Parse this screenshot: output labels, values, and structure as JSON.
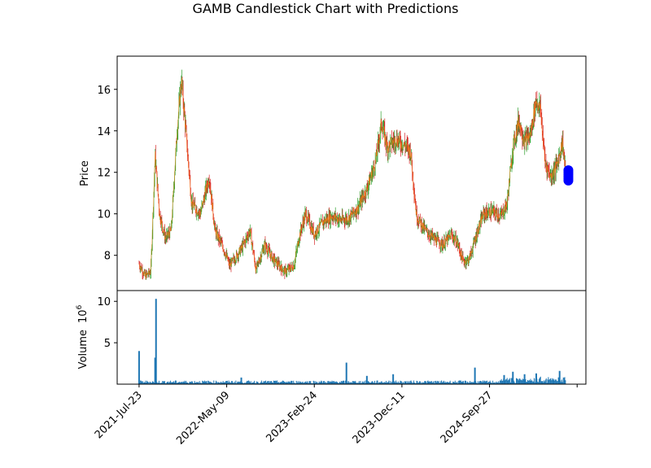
{
  "chart_data": {
    "type": "candlestick",
    "title": "GAMB Candlestick Chart with Predictions",
    "price_panel": {
      "ylabel": "Price",
      "ylim": [
        6.3,
        17.6
      ],
      "yticks": [
        8,
        10,
        12,
        14,
        16
      ],
      "up_color": "#2ca02c",
      "down_color": "#d62728",
      "close_line_color": "#ff7f0e",
      "series_approx_close": [
        {
          "x": 0.0,
          "y": 7.6
        },
        {
          "x": 2.0,
          "y": 7.0
        },
        {
          "x": 4.0,
          "y": 7.2
        },
        {
          "x": 5.5,
          "y": 12.8
        },
        {
          "x": 7.0,
          "y": 10.0
        },
        {
          "x": 9.0,
          "y": 8.8
        },
        {
          "x": 11.0,
          "y": 9.2
        },
        {
          "x": 13.0,
          "y": 14.0
        },
        {
          "x": 14.5,
          "y": 16.5
        },
        {
          "x": 16.0,
          "y": 14.0
        },
        {
          "x": 18.0,
          "y": 10.5
        },
        {
          "x": 21.0,
          "y": 10.0
        },
        {
          "x": 24.0,
          "y": 11.8
        },
        {
          "x": 26.0,
          "y": 9.2
        },
        {
          "x": 29.0,
          "y": 8.3
        },
        {
          "x": 31.0,
          "y": 7.5
        },
        {
          "x": 35.0,
          "y": 8.3
        },
        {
          "x": 38.0,
          "y": 9.2
        },
        {
          "x": 40.0,
          "y": 7.3
        },
        {
          "x": 43.0,
          "y": 8.5
        },
        {
          "x": 46.0,
          "y": 7.8
        },
        {
          "x": 50.0,
          "y": 7.2
        },
        {
          "x": 53.0,
          "y": 7.5
        },
        {
          "x": 55.0,
          "y": 9.0
        },
        {
          "x": 57.0,
          "y": 10.0
        },
        {
          "x": 60.0,
          "y": 9.0
        },
        {
          "x": 63.0,
          "y": 9.6
        },
        {
          "x": 66.0,
          "y": 9.9
        },
        {
          "x": 69.0,
          "y": 9.7
        },
        {
          "x": 72.0,
          "y": 9.8
        },
        {
          "x": 75.0,
          "y": 10.3
        },
        {
          "x": 78.0,
          "y": 11.2
        },
        {
          "x": 81.0,
          "y": 12.5
        },
        {
          "x": 83.0,
          "y": 14.4
        },
        {
          "x": 85.0,
          "y": 13.2
        },
        {
          "x": 88.0,
          "y": 13.6
        },
        {
          "x": 91.0,
          "y": 13.3
        },
        {
          "x": 93.0,
          "y": 13.0
        },
        {
          "x": 95.0,
          "y": 9.9
        },
        {
          "x": 98.0,
          "y": 9.2
        },
        {
          "x": 101.0,
          "y": 8.8
        },
        {
          "x": 104.0,
          "y": 8.5
        },
        {
          "x": 107.0,
          "y": 9.0
        },
        {
          "x": 109.0,
          "y": 8.6
        },
        {
          "x": 111.0,
          "y": 7.7
        },
        {
          "x": 113.0,
          "y": 7.8
        },
        {
          "x": 116.0,
          "y": 9.2
        },
        {
          "x": 118.0,
          "y": 10.0
        },
        {
          "x": 121.0,
          "y": 10.1
        },
        {
          "x": 124.0,
          "y": 9.9
        },
        {
          "x": 126.0,
          "y": 10.5
        },
        {
          "x": 128.0,
          "y": 13.2
        },
        {
          "x": 130.0,
          "y": 14.5
        },
        {
          "x": 132.0,
          "y": 13.5
        },
        {
          "x": 134.0,
          "y": 13.8
        },
        {
          "x": 136.0,
          "y": 15.5
        },
        {
          "x": 137.5,
          "y": 15.0
        },
        {
          "x": 139.0,
          "y": 12.5
        },
        {
          "x": 141.0,
          "y": 11.8
        },
        {
          "x": 143.0,
          "y": 12.3
        },
        {
          "x": 145.0,
          "y": 13.5
        },
        {
          "x": 146.0,
          "y": 12.0
        }
      ],
      "predictions_color": "#0000ff",
      "predictions": [
        {
          "x": 147.0,
          "y": 12.1
        },
        {
          "x": 147.0,
          "y": 11.9
        },
        {
          "x": 147.0,
          "y": 11.7
        },
        {
          "x": 147.0,
          "y": 11.6
        },
        {
          "x": 147.0,
          "y": 12.0
        },
        {
          "x": 147.0,
          "y": 11.8
        }
      ]
    },
    "volume_panel": {
      "ylabel": "Volume",
      "scale_label": "10",
      "scale_exponent": "6",
      "ylim": [
        0,
        11.3
      ],
      "yticks": [
        5,
        10
      ],
      "bar_color": "#1f77b4",
      "spikes": [
        {
          "x": 0.0,
          "y": 4.0
        },
        {
          "x": 5.5,
          "y": 3.2
        },
        {
          "x": 5.8,
          "y": 10.3
        },
        {
          "x": 35.0,
          "y": 0.8
        },
        {
          "x": 71.0,
          "y": 2.6
        },
        {
          "x": 78.0,
          "y": 1.0
        },
        {
          "x": 87.0,
          "y": 1.2
        },
        {
          "x": 115.0,
          "y": 2.0
        },
        {
          "x": 125.0,
          "y": 1.1
        },
        {
          "x": 128.0,
          "y": 1.5
        },
        {
          "x": 132.0,
          "y": 1.2
        },
        {
          "x": 136.0,
          "y": 1.3
        },
        {
          "x": 144.0,
          "y": 1.6
        }
      ]
    },
    "x_ticks": [
      {
        "x": 0.0,
        "label": "2021-Jul-23"
      },
      {
        "x": 30.0,
        "label": "2022-May-09"
      },
      {
        "x": 60.0,
        "label": "2023-Feb-24"
      },
      {
        "x": 90.0,
        "label": "2023-Dec-11"
      },
      {
        "x": 120.0,
        "label": "2024-Sep-27"
      },
      {
        "x": 150.0,
        "label": ""
      }
    ],
    "xlim": [
      -7.5,
      153.0
    ],
    "grid": false,
    "legend": "none"
  }
}
